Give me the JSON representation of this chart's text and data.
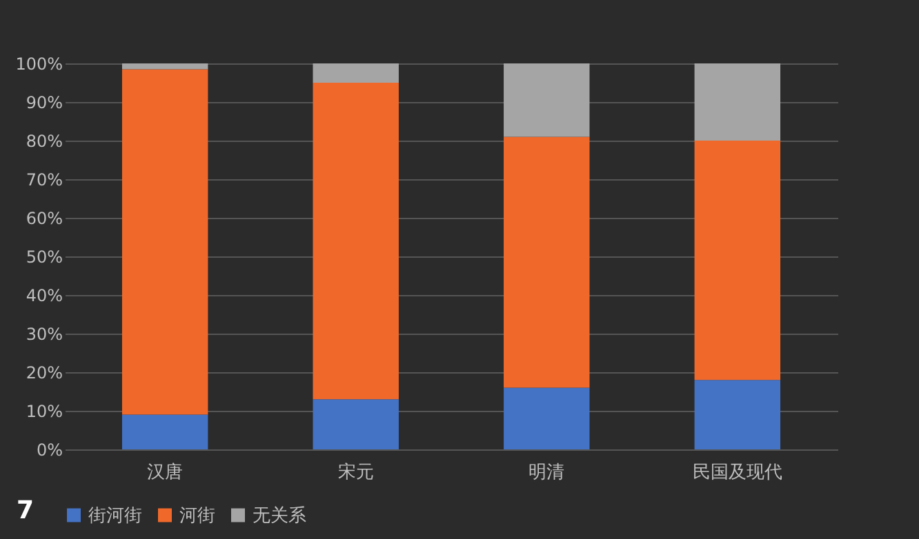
{
  "chart_data": {
    "type": "bar",
    "stacked": true,
    "categories": [
      "汉唐",
      "宋元",
      "明清",
      "民国及现代"
    ],
    "series": [
      {
        "name": "街河街",
        "color": "#4472c4",
        "values": [
          9,
          13,
          16,
          18
        ]
      },
      {
        "name": "河街",
        "color": "#f0692a",
        "values": [
          89.5,
          82,
          65,
          62
        ]
      },
      {
        "name": "无关系",
        "color": "#a5a5a5",
        "values": [
          1.5,
          5,
          19,
          20
        ]
      }
    ],
    "ylim": [
      0,
      100
    ],
    "yticks": [
      {
        "value": 0,
        "label": "0%"
      },
      {
        "value": 10,
        "label": "10%"
      },
      {
        "value": 20,
        "label": "20%"
      },
      {
        "value": 30,
        "label": "30%"
      },
      {
        "value": 40,
        "label": "40%"
      },
      {
        "value": 50,
        "label": "50%"
      },
      {
        "value": 60,
        "label": "60%"
      },
      {
        "value": 70,
        "label": "70%"
      },
      {
        "value": 80,
        "label": "80%"
      },
      {
        "value": 90,
        "label": "90%"
      },
      {
        "value": 100,
        "label": "100%"
      }
    ],
    "grid": "y",
    "legend": "bottom",
    "annotations": [
      "7"
    ]
  }
}
